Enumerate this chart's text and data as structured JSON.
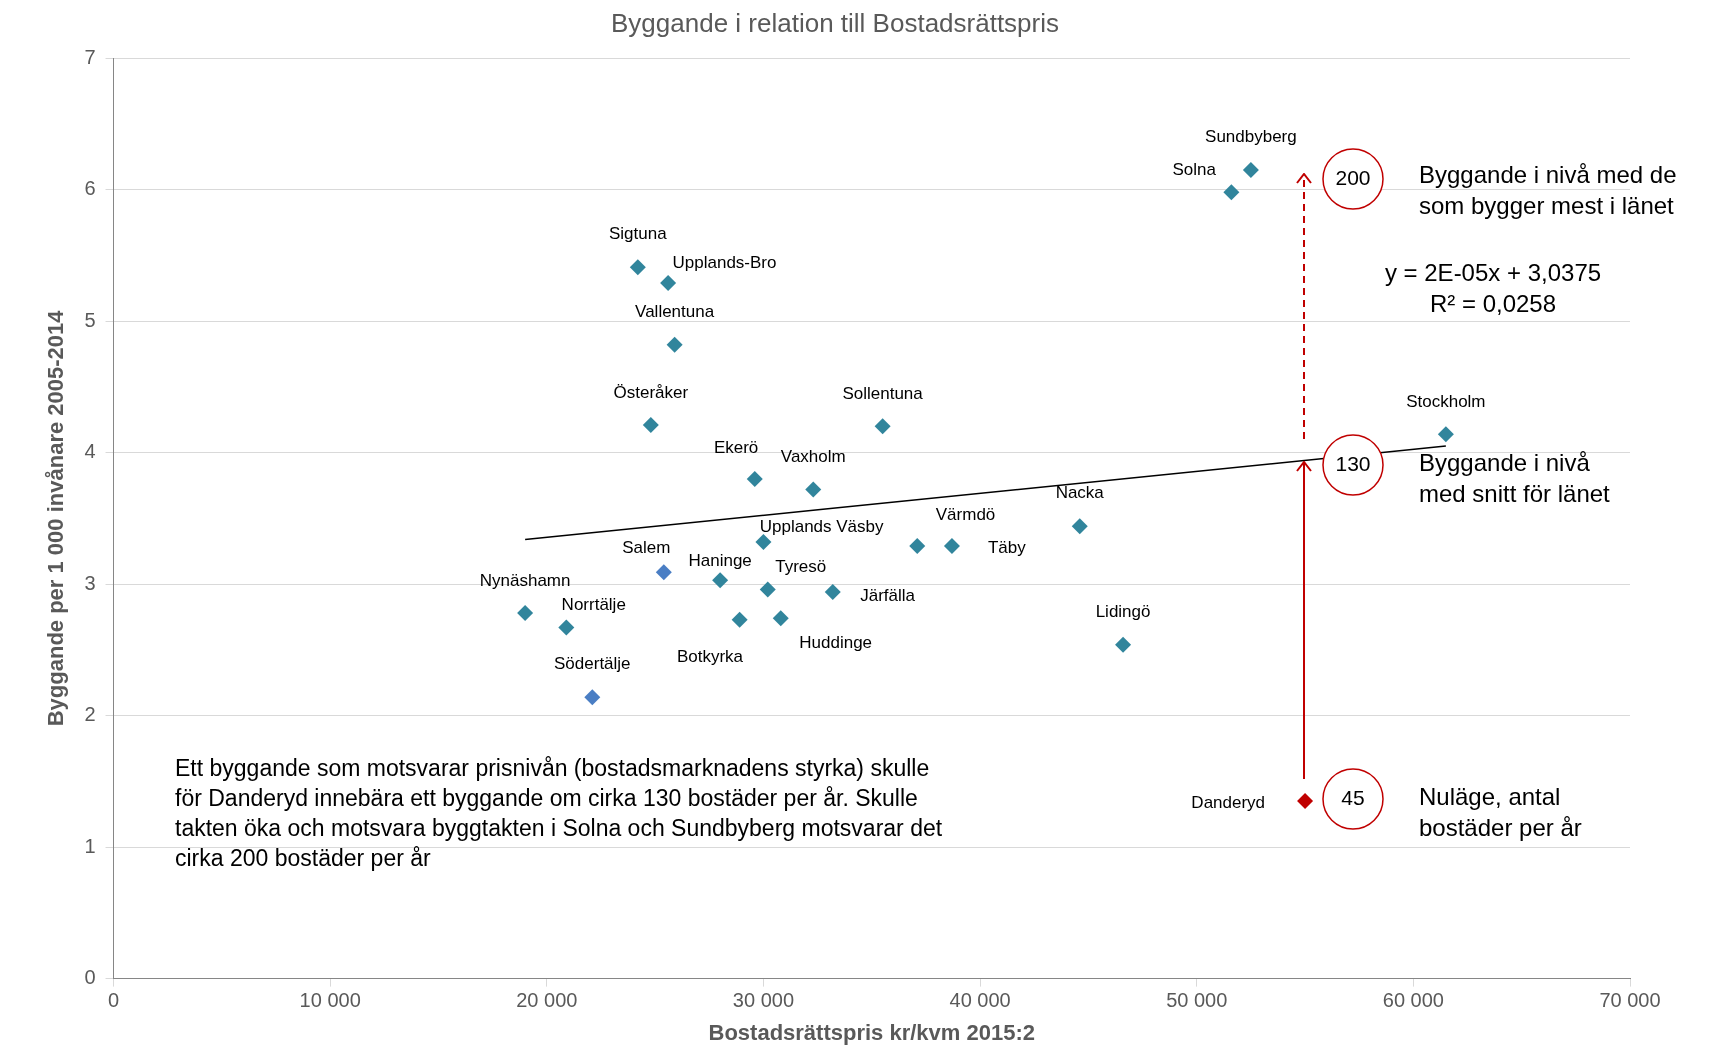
{
  "chart_data": {
    "type": "scatter",
    "title": "Byggande i relation till Bostadsrättspris",
    "xlabel": "Bostadsrättspris kr/kvm 2015:2",
    "ylabel": "Byggande per 1 000 invånare 2005-2014",
    "xlim": [
      0,
      70000
    ],
    "xticks": [
      0,
      {
        "value": 10000,
        "label": "10 000"
      },
      {
        "value": 20000,
        "label": "20 000"
      },
      {
        "value": 30000,
        "label": "30 000"
      },
      {
        "value": 40000,
        "label": "40 000"
      },
      {
        "value": 50000,
        "label": "50 000"
      },
      {
        "value": 60000,
        "label": "60 000"
      },
      {
        "value": 70000,
        "label": "70 000"
      }
    ],
    "ylim": [
      0,
      7
    ],
    "yticks": [
      0,
      1,
      2,
      3,
      4,
      5,
      6,
      7
    ],
    "grid": "y",
    "legend": false,
    "marker": "diamond",
    "series": [
      {
        "name": "Sundbyberg",
        "color": "#31859c",
        "x": [
          52500
        ],
        "values": [
          6.15
        ]
      },
      {
        "name": "Solna",
        "color": "#31859c",
        "x": [
          51600
        ],
        "values": [
          5.98
        ]
      },
      {
        "name": "Sigtuna",
        "color": "#31859c",
        "x": [
          24200
        ],
        "values": [
          5.41
        ]
      },
      {
        "name": "Upplands-Bro",
        "color": "#31859c",
        "x": [
          25600
        ],
        "values": [
          5.29
        ]
      },
      {
        "name": "Vallentuna",
        "color": "#31859c",
        "x": [
          25900
        ],
        "values": [
          4.82
        ]
      },
      {
        "name": "Österåker",
        "color": "#31859c",
        "x": [
          24800
        ],
        "values": [
          4.21
        ]
      },
      {
        "name": "Sollentuna",
        "color": "#31859c",
        "x": [
          35500
        ],
        "values": [
          4.2
        ]
      },
      {
        "name": "Stockholm",
        "color": "#31859c",
        "x": [
          61500
        ],
        "values": [
          4.14
        ]
      },
      {
        "name": "Ekerö",
        "color": "#31859c",
        "x": [
          29600
        ],
        "values": [
          3.8
        ]
      },
      {
        "name": "Vaxholm",
        "color": "#31859c",
        "x": [
          32300
        ],
        "values": [
          3.72
        ]
      },
      {
        "name": "Nacka",
        "color": "#31859c",
        "x": [
          44600
        ],
        "values": [
          3.44
        ]
      },
      {
        "name": "Upplands Väsby",
        "color": "#31859c",
        "x": [
          30000
        ],
        "values": [
          3.32
        ]
      },
      {
        "name": "Värmdö",
        "color": "#31859c",
        "x": [
          37100
        ],
        "values": [
          3.29
        ]
      },
      {
        "name": "Täby",
        "color": "#31859c",
        "x": [
          38700
        ],
        "values": [
          3.29
        ]
      },
      {
        "name": "Salem",
        "color": "#4a7ec4",
        "x": [
          25400
        ],
        "values": [
          3.09
        ]
      },
      {
        "name": "Haninge",
        "color": "#31859c",
        "x": [
          28000
        ],
        "values": [
          3.03
        ]
      },
      {
        "name": "Tyresö",
        "color": "#31859c",
        "x": [
          30200
        ],
        "values": [
          2.96
        ]
      },
      {
        "name": "Järfälla",
        "color": "#31859c",
        "x": [
          33200
        ],
        "values": [
          2.94
        ]
      },
      {
        "name": "Nynäshamn",
        "color": "#31859c",
        "x": [
          19000
        ],
        "values": [
          2.78
        ]
      },
      {
        "name": "Norrtälje",
        "color": "#31859c",
        "x": [
          20900
        ],
        "values": [
          2.67
        ]
      },
      {
        "name": "Botkyrka",
        "color": "#31859c",
        "x": [
          28900
        ],
        "values": [
          2.73
        ]
      },
      {
        "name": "Huddinge",
        "color": "#31859c",
        "x": [
          30800
        ],
        "values": [
          2.74
        ]
      },
      {
        "name": "Lidingö",
        "color": "#31859c",
        "x": [
          46600
        ],
        "values": [
          2.54
        ]
      },
      {
        "name": "Södertälje",
        "color": "#4a7ec4",
        "x": [
          22100
        ],
        "values": [
          2.14
        ]
      },
      {
        "name": "Danderyd",
        "color": "#c00000",
        "x": [
          55000
        ],
        "values": [
          1.35
        ]
      },
      {
        "type": "line",
        "color": "#000000",
        "marker": "none",
        "x": [
          19000,
          61500
        ],
        "values": [
          3.34,
          4.05
        ]
      }
    ],
    "annotations": [
      "200",
      "130",
      "45",
      "Byggande i nivå med de\nsom bygger mest i länet",
      "Byggande i nivå\nmed snitt för länet",
      "Nuläge, antal\nbostäder per år",
      "y = 2E-05x + 3,0375\nR² = 0,0258",
      "Ett byggande som motsvarar prisnivån (bostadsmarknadens styrka) skulle\nför Danderyd innebära ett byggande om cirka 130 bostäder per år. Skulle\ntakten öka och motsvara byggtakten i Solna och Sundbyberg motsvarar det\ncirka 200 bostäder per år"
    ]
  }
}
